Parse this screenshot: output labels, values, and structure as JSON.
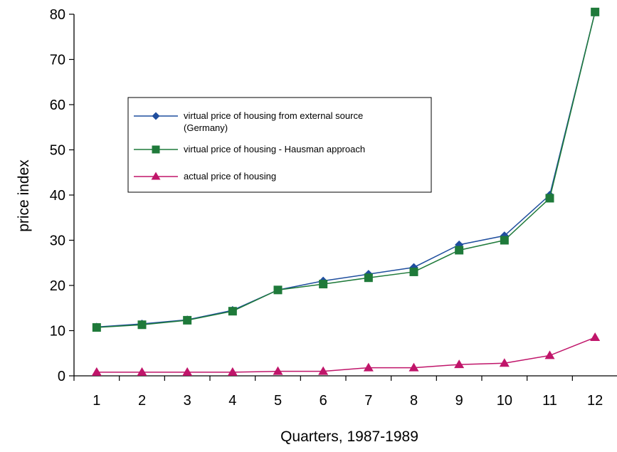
{
  "chart_data": {
    "type": "line",
    "title": "",
    "xlabel": "Quarters, 1987-1989",
    "ylabel": "price index",
    "categories": [
      "1",
      "2",
      "3",
      "4",
      "5",
      "6",
      "7",
      "8",
      "9",
      "10",
      "11",
      "12"
    ],
    "ylim": [
      0,
      80
    ],
    "yticks": [
      "0",
      "10",
      "20",
      "30",
      "40",
      "50",
      "60",
      "70",
      "80"
    ],
    "grid": false,
    "legend_position": "center-left",
    "series": [
      {
        "name": "virtual price of housing from external source (Germany)",
        "name_lines": [
          "virtual price of housing from external source",
          "(Germany)"
        ],
        "color": "#1f4e9e",
        "marker": "diamond",
        "values": [
          10.8,
          11.5,
          12.4,
          14.5,
          19.0,
          21.0,
          22.5,
          24.0,
          29.0,
          31.0,
          40.0,
          80.5
        ]
      },
      {
        "name": "virtual price of housing - Hausman approach",
        "name_lines": [
          "virtual price of housing - Hausman approach"
        ],
        "color": "#1f7a3a",
        "marker": "square",
        "values": [
          10.7,
          11.3,
          12.3,
          14.3,
          19.0,
          20.3,
          21.7,
          23.0,
          27.8,
          30.0,
          39.3,
          80.5
        ]
      },
      {
        "name": "actual price of housing",
        "name_lines": [
          "actual price of housing"
        ],
        "color": "#c0156a",
        "marker": "triangle",
        "values": [
          0.8,
          0.8,
          0.8,
          0.8,
          1.0,
          1.0,
          1.8,
          1.8,
          2.5,
          2.8,
          4.5,
          8.5
        ]
      }
    ]
  }
}
